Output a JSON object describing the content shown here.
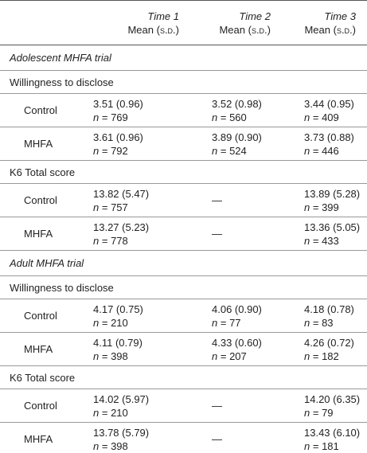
{
  "header": {
    "columns": [
      {
        "time": "Time 1",
        "stat": "Mean",
        "sd": "(s.d.)"
      },
      {
        "time": "Time 2",
        "stat": "Mean",
        "sd": "(s.d.)"
      },
      {
        "time": "Time 3",
        "stat": "Mean",
        "sd": "(s.d.)"
      }
    ]
  },
  "sections": [
    {
      "title": "Adolescent MHFA trial",
      "measures": [
        {
          "name": "Willingness to disclose",
          "groups": [
            {
              "name": "Control",
              "cells": [
                {
                  "mean": "3.51 (0.96)",
                  "n_symbol": "n",
                  "n": "= 769"
                },
                {
                  "mean": "3.52 (0.98)",
                  "n_symbol": "n",
                  "n": "= 560"
                },
                {
                  "mean": "3.44 (0.95)",
                  "n_symbol": "n",
                  "n": "= 409"
                }
              ]
            },
            {
              "name": "MHFA",
              "cells": [
                {
                  "mean": "3.61 (0.96)",
                  "n_symbol": "n",
                  "n": "= 792"
                },
                {
                  "mean": "3.89 (0.90)",
                  "n_symbol": "n",
                  "n": "= 524"
                },
                {
                  "mean": "3.73 (0.88)",
                  "n_symbol": "n",
                  "n": "= 446"
                }
              ]
            }
          ]
        },
        {
          "name": "K6 Total score",
          "groups": [
            {
              "name": "Control",
              "cells": [
                {
                  "mean": "13.82 (5.47)",
                  "n_symbol": "n",
                  "n": "= 757"
                },
                {
                  "mean": "—"
                },
                {
                  "mean": "13.89 (5.28)",
                  "n_symbol": "n",
                  "n": "= 399"
                }
              ]
            },
            {
              "name": "MHFA",
              "cells": [
                {
                  "mean": "13.27 (5.23)",
                  "n_symbol": "n",
                  "n": "= 778"
                },
                {
                  "mean": "—"
                },
                {
                  "mean": "13.36 (5.05)",
                  "n_symbol": "n",
                  "n": "= 433"
                }
              ]
            }
          ]
        }
      ]
    },
    {
      "title": "Adult MHFA trial",
      "measures": [
        {
          "name": "Willingness to disclose",
          "groups": [
            {
              "name": "Control",
              "cells": [
                {
                  "mean": "4.17 (0.75)",
                  "n_symbol": "n",
                  "n": "= 210"
                },
                {
                  "mean": "4.06 (0.90)",
                  "n_symbol": "n",
                  "n": "= 77"
                },
                {
                  "mean": "4.18 (0.78)",
                  "n_symbol": "n",
                  "n": "= 83"
                }
              ]
            },
            {
              "name": "MHFA",
              "cells": [
                {
                  "mean": "4.11 (0.79)",
                  "n_symbol": "n",
                  "n": "= 398"
                },
                {
                  "mean": "4.33 (0.60)",
                  "n_symbol": "n",
                  "n": "= 207"
                },
                {
                  "mean": "4.26 (0.72)",
                  "n_symbol": "n",
                  "n": "= 182"
                }
              ]
            }
          ]
        },
        {
          "name": "K6 Total score",
          "groups": [
            {
              "name": "Control",
              "cells": [
                {
                  "mean": "14.02 (5.97)",
                  "n_symbol": "n",
                  "n": "= 210"
                },
                {
                  "mean": "—"
                },
                {
                  "mean": "14.20 (6.35)",
                  "n_symbol": "n",
                  "n": "= 79"
                }
              ]
            },
            {
              "name": "MHFA",
              "cells": [
                {
                  "mean": "13.78 (5.79)",
                  "n_symbol": "n",
                  "n": "= 398"
                },
                {
                  "mean": "—"
                },
                {
                  "mean": "13.43 (6.10)",
                  "n_symbol": "n",
                  "n": "= 181"
                }
              ]
            }
          ]
        }
      ]
    }
  ]
}
